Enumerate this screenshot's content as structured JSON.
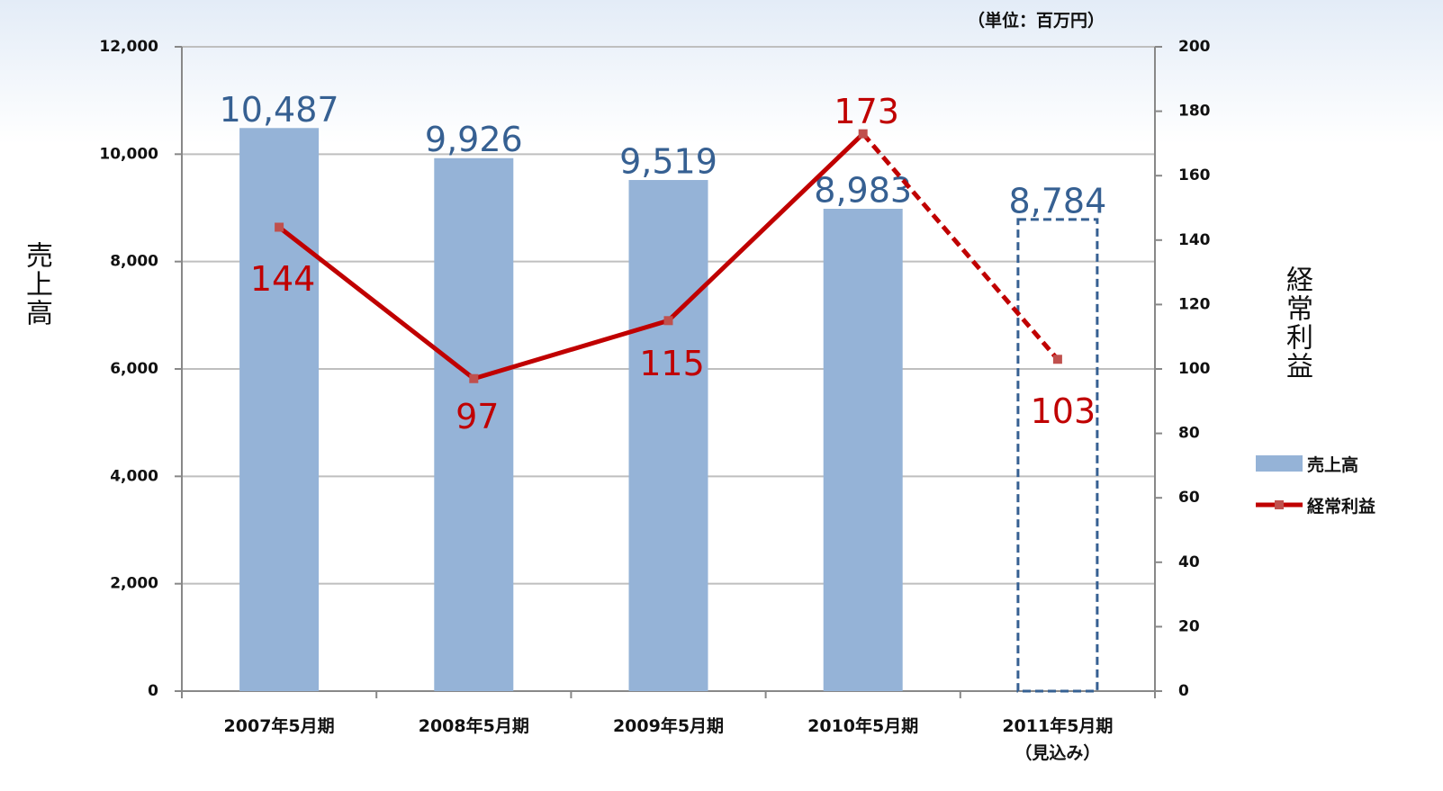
{
  "chart_data": {
    "type": "bar-line",
    "unit_note": "（単位：百万円）",
    "categories": [
      "2007年5月期",
      "2008年5月期",
      "2009年5月期",
      "2010年5月期",
      "2011年5月期\n（見込み）"
    ],
    "forecast": [
      false,
      false,
      false,
      false,
      true
    ],
    "y_label": "売上高",
    "y2_label": "経常利益",
    "series": [
      {
        "name": "売上高",
        "type": "bar",
        "color": "#95b3d7",
        "label_color": "#366092",
        "values": [
          10487,
          9926,
          9519,
          8983,
          8784
        ],
        "value_labels": [
          "10,487",
          "9,926",
          "9,519",
          "8,983",
          "8,784"
        ]
      },
      {
        "name": "経常利益",
        "type": "line",
        "axis": "y2",
        "color": "#c00000",
        "marker_color": "#c0504d",
        "values": [
          144,
          97,
          115,
          173,
          103
        ]
      }
    ],
    "ylim": [
      0,
      12000
    ],
    "yticks": [
      0,
      {
        "value": 2000,
        "label": "2,000"
      },
      {
        "value": 4000,
        "label": "4,000"
      },
      {
        "value": 6000,
        "label": "6,000"
      },
      {
        "value": 8000,
        "label": "8,000"
      },
      {
        "value": 10000,
        "label": "10,000"
      },
      {
        "value": 12000,
        "label": "12,000"
      }
    ],
    "y2lim": [
      0,
      200
    ],
    "y2ticks": [
      0,
      20,
      40,
      60,
      80,
      100,
      120,
      140,
      160,
      180,
      200
    ],
    "grid": true,
    "legend": "right"
  }
}
